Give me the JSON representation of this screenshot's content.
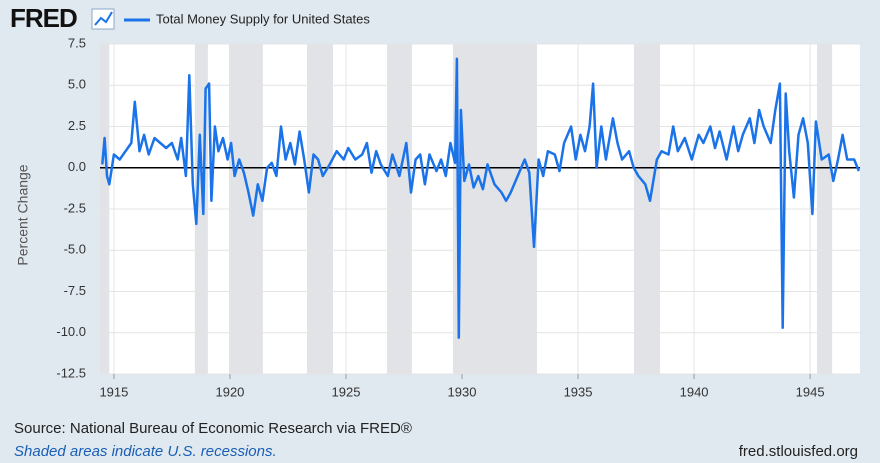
{
  "header": {
    "logo": "FRED",
    "url": "fred.stlouisfed.org"
  },
  "chart_data": {
    "type": "line",
    "y_axis_label": "Percent Change",
    "source": "Source: National Bureau of Economic Research via FRED®",
    "note": "Shaded areas indicate U.S. recessions.",
    "xlim": [
      1914.4,
      1947.15
    ],
    "xticks": [
      1915,
      1920,
      1925,
      1930,
      1935,
      1940,
      1945
    ],
    "ylim": [
      -12.5,
      7.5
    ],
    "yticks": [
      7.5,
      {
        "value": 5,
        "label": "5.0"
      },
      2.5,
      {
        "value": 0,
        "label": "0.0"
      },
      -2.5,
      {
        "value": -5,
        "label": "-5.0"
      },
      -7.5,
      {
        "value": -10,
        "label": "-10.0"
      },
      -12.5
    ],
    "grid": true,
    "recessions": [
      [
        1914.4,
        1914.8
      ],
      [
        1918.49,
        1919.05
      ],
      [
        1919.96,
        1921.42
      ],
      [
        1923.32,
        1924.44
      ],
      [
        1926.77,
        1927.84
      ],
      [
        1929.61,
        1933.23
      ],
      [
        1937.41,
        1938.53
      ],
      [
        1945.3,
        1945.95
      ]
    ],
    "series": [
      {
        "name": "Total Money Supply for United States",
        "color": "#1a73e8",
        "x": [
          1914.5,
          1914.6,
          1914.7,
          1914.8,
          1915.0,
          1915.25,
          1915.5,
          1915.75,
          1915.9,
          1916.1,
          1916.3,
          1916.5,
          1916.75,
          1917.0,
          1917.25,
          1917.5,
          1917.75,
          1917.9,
          1918.1,
          1918.25,
          1918.4,
          1918.55,
          1918.7,
          1918.85,
          1918.95,
          1919.1,
          1919.2,
          1919.35,
          1919.5,
          1919.7,
          1919.9,
          1920.05,
          1920.2,
          1920.4,
          1920.6,
          1920.8,
          1921.0,
          1921.2,
          1921.4,
          1921.6,
          1921.8,
          1922.0,
          1922.2,
          1922.4,
          1922.6,
          1922.8,
          1923.0,
          1923.2,
          1923.4,
          1923.6,
          1923.8,
          1924.0,
          1924.3,
          1924.6,
          1924.9,
          1925.1,
          1925.4,
          1925.7,
          1925.9,
          1926.1,
          1926.3,
          1926.5,
          1926.8,
          1927.0,
          1927.3,
          1927.6,
          1927.8,
          1928.0,
          1928.2,
          1928.4,
          1928.6,
          1928.9,
          1929.1,
          1929.3,
          1929.5,
          1929.7,
          1929.78,
          1929.86,
          1929.95,
          1930.1,
          1930.3,
          1930.5,
          1930.7,
          1930.9,
          1931.1,
          1931.4,
          1931.7,
          1931.9,
          1932.1,
          1932.4,
          1932.7,
          1932.9,
          1933.1,
          1933.3,
          1933.5,
          1933.7,
          1934.0,
          1934.2,
          1934.4,
          1934.7,
          1934.9,
          1935.1,
          1935.3,
          1935.5,
          1935.65,
          1935.8,
          1936.0,
          1936.2,
          1936.5,
          1936.7,
          1936.9,
          1937.2,
          1937.4,
          1937.6,
          1937.9,
          1938.1,
          1938.4,
          1938.6,
          1938.9,
          1939.1,
          1939.3,
          1939.6,
          1939.9,
          1940.2,
          1940.4,
          1940.7,
          1940.9,
          1941.1,
          1941.4,
          1941.7,
          1941.9,
          1942.1,
          1942.4,
          1942.6,
          1942.8,
          1943.0,
          1943.3,
          1943.5,
          1943.7,
          1943.82,
          1943.95,
          1944.1,
          1944.3,
          1944.5,
          1944.7,
          1944.9,
          1945.1,
          1945.25,
          1945.5,
          1945.8,
          1946.0,
          1946.2,
          1946.4,
          1946.6,
          1946.9,
          1947.1
        ],
        "values": [
          0.2,
          1.8,
          -0.5,
          -1.0,
          0.8,
          0.5,
          1.0,
          1.5,
          4.0,
          1.0,
          2.0,
          0.8,
          1.8,
          1.5,
          1.2,
          1.5,
          0.5,
          1.8,
          -0.5,
          5.6,
          -1.0,
          -3.4,
          2.0,
          -2.8,
          4.8,
          5.1,
          -2.0,
          2.5,
          1.0,
          1.8,
          0.5,
          1.5,
          -0.5,
          0.5,
          -0.3,
          -1.5,
          -2.9,
          -1.0,
          -2.0,
          0.0,
          0.3,
          -0.5,
          2.5,
          0.5,
          1.5,
          0.2,
          2.2,
          0.5,
          -1.5,
          0.8,
          0.5,
          -0.5,
          0.2,
          1.0,
          0.5,
          1.2,
          0.5,
          0.8,
          1.5,
          -0.3,
          1.0,
          0.2,
          -0.5,
          0.8,
          -0.5,
          1.5,
          -1.5,
          0.5,
          0.8,
          -1.0,
          0.8,
          -0.2,
          0.5,
          -0.5,
          1.5,
          0.3,
          6.6,
          -10.3,
          3.5,
          -0.8,
          0.2,
          -1.2,
          -0.5,
          -1.3,
          0.2,
          -1.0,
          -1.5,
          -2.0,
          -1.5,
          -0.5,
          0.5,
          -0.3,
          -4.8,
          0.5,
          -0.5,
          1.0,
          0.8,
          -0.2,
          1.5,
          2.5,
          0.5,
          2.0,
          1.0,
          2.5,
          5.1,
          0.0,
          2.5,
          0.5,
          3.0,
          1.5,
          0.5,
          1.0,
          0.0,
          -0.5,
          -1.0,
          -2.0,
          0.5,
          1.0,
          0.8,
          2.5,
          1.0,
          1.8,
          0.5,
          2.0,
          1.5,
          2.5,
          1.2,
          2.2,
          0.5,
          2.5,
          1.0,
          2.0,
          3.0,
          1.5,
          3.5,
          2.5,
          1.5,
          3.5,
          5.1,
          -9.7,
          4.5,
          1.0,
          -1.8,
          2.0,
          3.0,
          1.5,
          -2.8,
          2.8,
          0.5,
          0.8,
          -0.8,
          0.5,
          2.0,
          0.5,
          0.5,
          -0.2
        ]
      }
    ]
  }
}
